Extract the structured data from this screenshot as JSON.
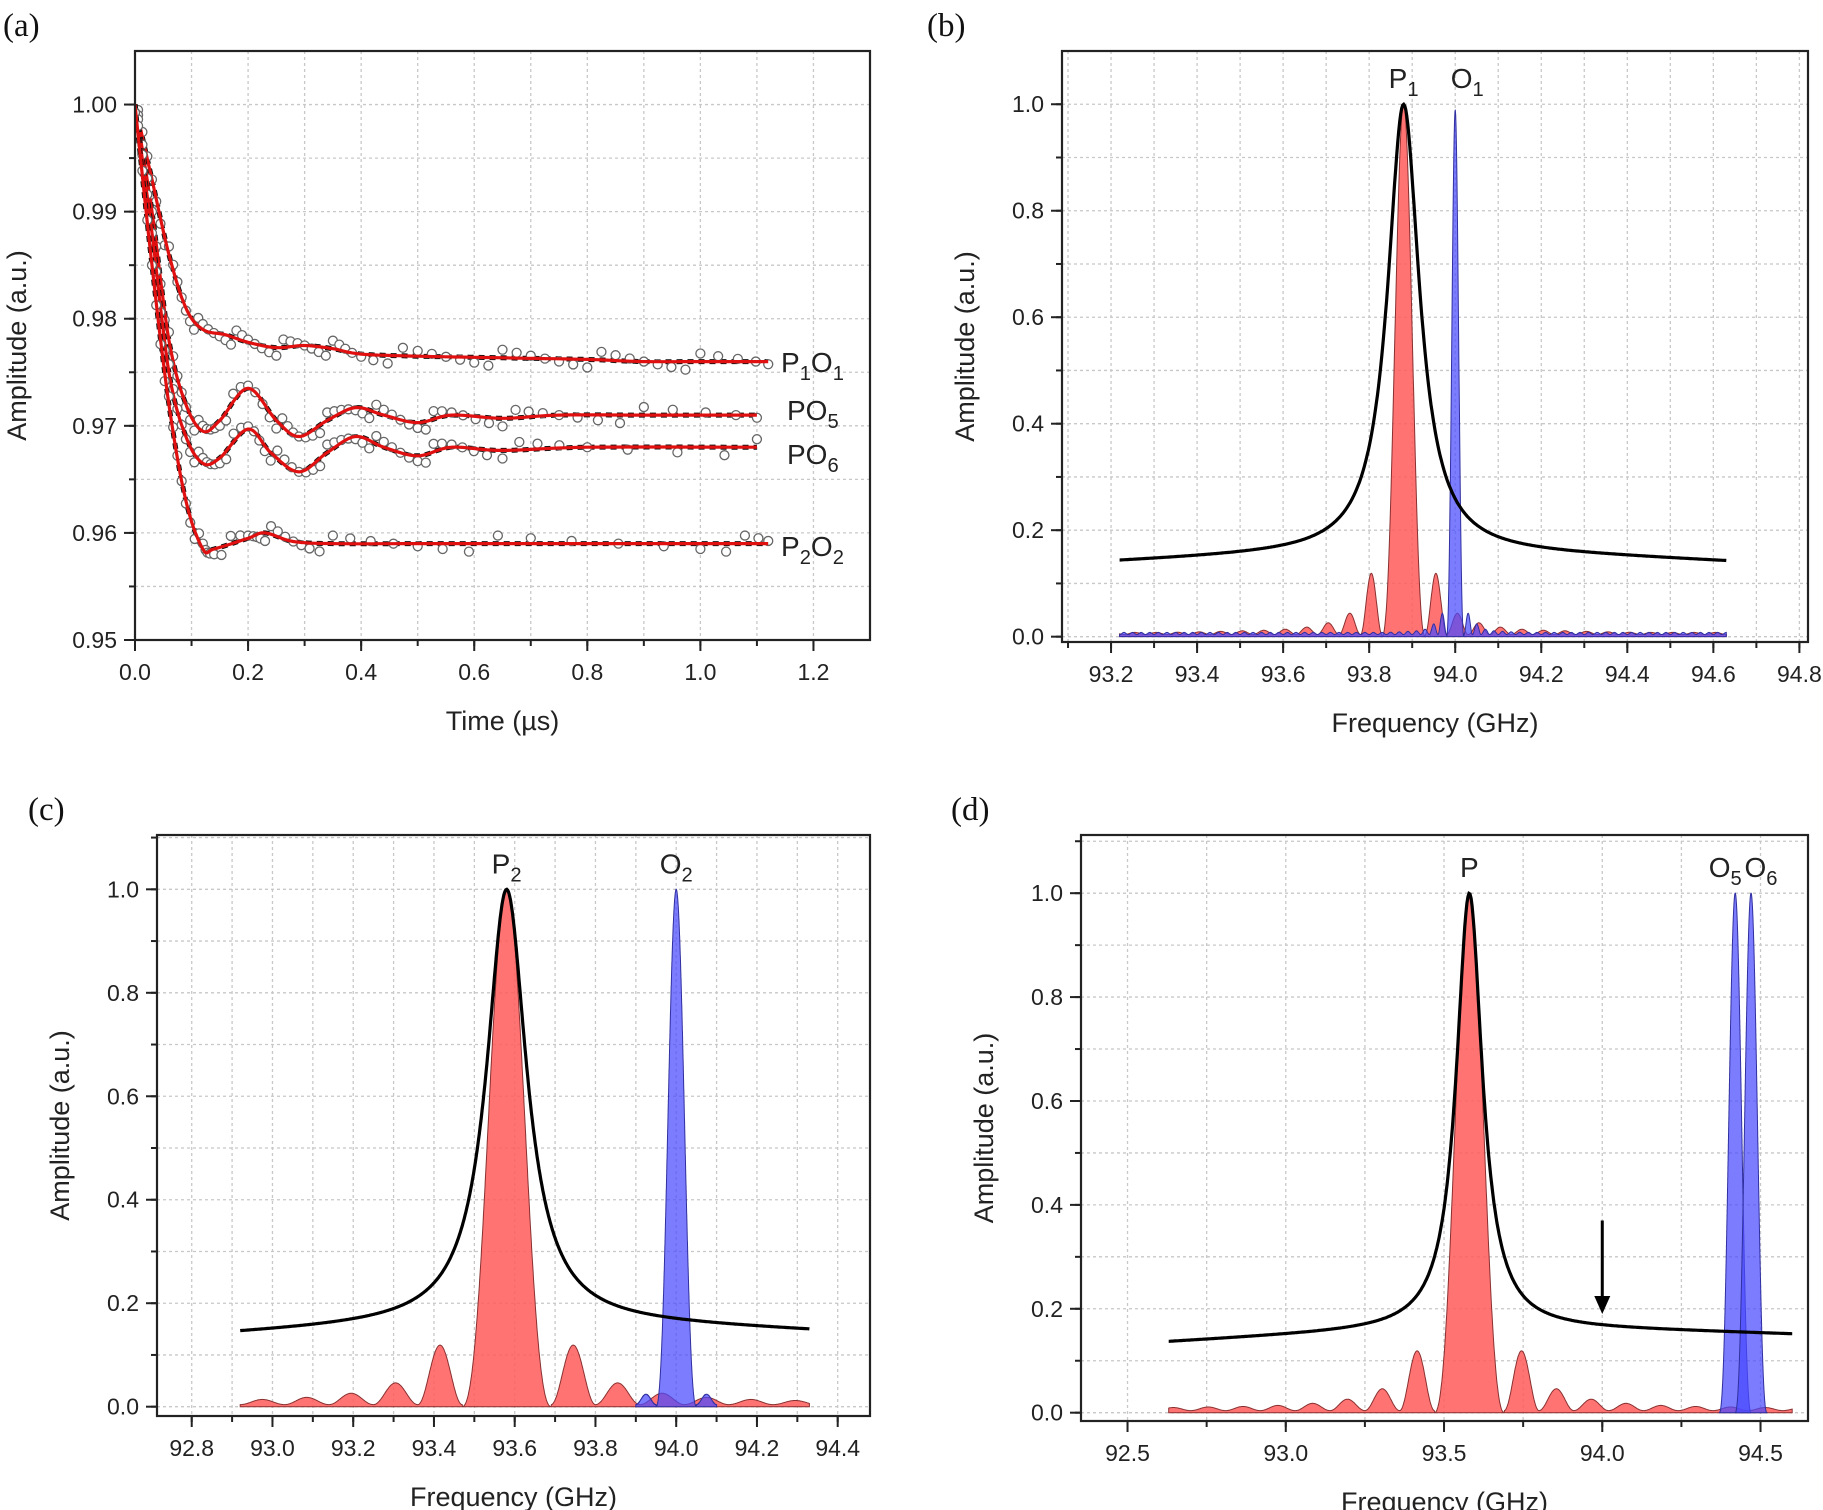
{
  "chart_data": [
    {
      "panel_label": "(a)",
      "type": "line",
      "xlabel": "Time (µs)",
      "ylabel": "Amplitude (a.u.)",
      "xlim": [
        0,
        1.3
      ],
      "ylim": [
        0.95,
        1.005
      ],
      "xticks": [
        "0.0",
        "0.2",
        "0.4",
        "0.6",
        "0.8",
        "1.0",
        "1.2"
      ],
      "yticks": [
        "0.95",
        "0.96",
        "0.97",
        "0.98",
        "0.99",
        "1.00"
      ],
      "grid": true,
      "fit_color": "#e01010",
      "series": [
        {
          "name": "P1O1",
          "x": [
            0,
            0.03,
            0.06,
            0.09,
            0.12,
            0.16,
            0.2,
            0.25,
            0.3,
            0.35,
            0.4,
            0.5,
            0.6,
            0.7,
            0.8,
            0.9,
            1.0,
            1.12
          ],
          "y": [
            1.0,
            0.993,
            0.986,
            0.981,
            0.979,
            0.9785,
            0.9778,
            0.9773,
            0.9775,
            0.9772,
            0.9767,
            0.9765,
            0.9764,
            0.9763,
            0.9762,
            0.976,
            0.976,
            0.976
          ]
        },
        {
          "name": "PO5",
          "x": [
            0,
            0.03,
            0.06,
            0.09,
            0.12,
            0.15,
            0.2,
            0.25,
            0.29,
            0.34,
            0.39,
            0.44,
            0.5,
            0.56,
            0.65,
            0.75,
            0.9,
            1.1
          ],
          "y": [
            1.0,
            0.99,
            0.978,
            0.972,
            0.9695,
            0.9705,
            0.9735,
            0.9705,
            0.969,
            0.9705,
            0.9717,
            0.971,
            0.9703,
            0.971,
            0.9707,
            0.971,
            0.971,
            0.971
          ]
        },
        {
          "name": "PO6",
          "x": [
            0,
            0.03,
            0.06,
            0.09,
            0.12,
            0.15,
            0.2,
            0.24,
            0.29,
            0.34,
            0.39,
            0.44,
            0.5,
            0.56,
            0.65,
            0.8,
            1.1
          ],
          "y": [
            1.0,
            0.988,
            0.975,
            0.969,
            0.9665,
            0.967,
            0.9697,
            0.9675,
            0.9657,
            0.9675,
            0.969,
            0.968,
            0.9672,
            0.968,
            0.9677,
            0.968,
            0.968
          ]
        },
        {
          "name": "P2O2",
          "x": [
            0,
            0.03,
            0.06,
            0.09,
            0.12,
            0.14,
            0.2,
            0.23,
            0.28,
            0.35,
            0.5,
            0.7,
            1.0,
            1.12
          ],
          "y": [
            1.0,
            0.985,
            0.972,
            0.963,
            0.9585,
            0.9585,
            0.9595,
            0.96,
            0.9592,
            0.959,
            0.959,
            0.959,
            0.959,
            0.959
          ]
        }
      ]
    },
    {
      "panel_label": "(b)",
      "type": "area",
      "xlabel": "Frequency (GHz)",
      "ylabel": "Amplitude (a.u.)",
      "xlim": [
        93.086,
        94.82
      ],
      "ylim": [
        -0.01,
        1.1
      ],
      "xticks": [
        "93.2",
        "93.4",
        "93.6",
        "93.8",
        "94.0",
        "94.2",
        "94.4",
        "94.6",
        "94.8"
      ],
      "yticks": [
        "0.0",
        "0.2",
        "0.4",
        "0.6",
        "0.8",
        "1.0"
      ],
      "grid": true,
      "lorentzian": {
        "center": 93.88,
        "hwhm": 0.045,
        "baseline": [
          0.14,
          0.14
        ],
        "x_range": [
          93.22,
          94.63
        ]
      },
      "peaks": [
        {
          "label": "P1",
          "center": 93.88,
          "height": 1.0,
          "zero_spacing": 0.05,
          "sidelobe_heights": [
            0.115,
            0.04,
            0.022,
            0.014,
            0.01,
            0.008,
            0.007
          ],
          "x_range": [
            93.22,
            94.63
          ],
          "color": "#ff5a5a"
        },
        {
          "label": "O1",
          "center": 94.0,
          "height": 0.99,
          "zero_spacing": 0.02,
          "sidelobe_heights": [
            0.04,
            0.02,
            0.01,
            0.007
          ],
          "x_range": [
            93.22,
            94.63
          ],
          "color": "#4a4aff"
        }
      ]
    },
    {
      "panel_label": "(c)",
      "type": "area",
      "xlabel": "Frequency (GHz)",
      "ylabel": "Amplitude (a.u.)",
      "xlim": [
        92.714,
        94.48
      ],
      "ylim": [
        -0.018,
        1.105
      ],
      "xticks": [
        "92.8",
        "93.0",
        "93.2",
        "93.4",
        "93.6",
        "93.8",
        "94.0",
        "94.2",
        "94.4"
      ],
      "yticks": [
        "0.0",
        "0.2",
        "0.4",
        "0.6",
        "0.8",
        "1.0"
      ],
      "grid": true,
      "lorentzian": {
        "center": 93.58,
        "hwhm": 0.06,
        "baseline": [
          0.14,
          0.145
        ],
        "x_range": [
          92.92,
          94.33
        ]
      },
      "peaks": [
        {
          "label": "P2",
          "center": 93.58,
          "height": 1.0,
          "zero_spacing": 0.11,
          "sidelobe_heights": [
            0.115,
            0.042,
            0.022,
            0.014,
            0.01,
            0.008,
            0.007
          ],
          "x_range": [
            92.92,
            94.33
          ],
          "color": "#ff5a5a"
        },
        {
          "label": "O2",
          "center": 94.0,
          "height": 1.0,
          "zero_spacing": 0.05,
          "sidelobe_heights": [
            0.02,
            0.01,
            0.006
          ],
          "x_range": [
            93.9,
            94.1
          ],
          "color": "#4a4aff"
        }
      ]
    },
    {
      "panel_label": "(d)",
      "type": "area",
      "xlabel": "Frequency (GHz)",
      "ylabel": "Amplitude (a.u.)",
      "xlim": [
        92.353,
        94.65
      ],
      "ylim": [
        -0.016,
        1.112
      ],
      "xticks": [
        "92.5",
        "93.0",
        "93.5",
        "94.0",
        "94.5"
      ],
      "yticks": [
        "0.0",
        "0.2",
        "0.4",
        "0.6",
        "0.8",
        "1.0"
      ],
      "grid": true,
      "lorentzian": {
        "center": 93.58,
        "hwhm": 0.05,
        "baseline": [
          0.135,
          0.15
        ],
        "x_range": [
          92.63,
          94.6
        ]
      },
      "peaks": [
        {
          "label": "P",
          "center": 93.58,
          "height": 1.0,
          "zero_spacing": 0.11,
          "sidelobe_heights": [
            0.115,
            0.042,
            0.022,
            0.014,
            0.01,
            0.008,
            0.007
          ],
          "x_range": [
            92.63,
            94.6
          ],
          "color": "#ff5a5a"
        },
        {
          "label": "O5",
          "center": 94.42,
          "height": 1.0,
          "zero_spacing": 0.05,
          "sidelobe_heights": [],
          "x_range": [
            94.37,
            94.47
          ],
          "color": "#4a4aff"
        },
        {
          "label": "O6",
          "center": 94.47,
          "height": 1.0,
          "zero_spacing": 0.05,
          "sidelobe_heights": [],
          "x_range": [
            94.42,
            94.52
          ],
          "color": "#4a4aff"
        }
      ],
      "annotation_arrow": {
        "x": 94.0,
        "y_from": 0.37,
        "y_to": 0.19
      }
    }
  ]
}
